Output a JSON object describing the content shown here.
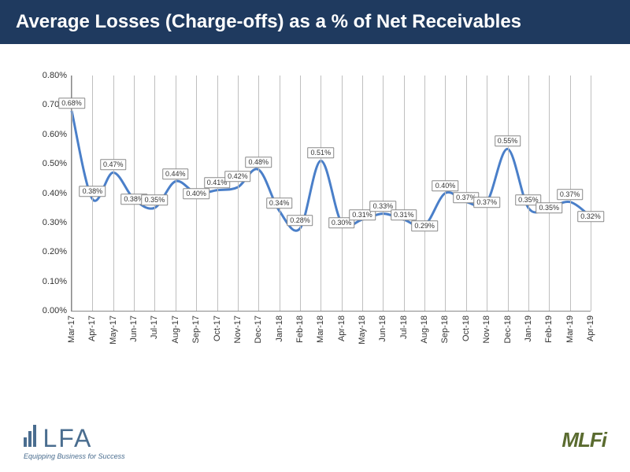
{
  "title": "Average Losses (Charge-offs) as a % of Net Receivables",
  "chart": {
    "type": "line",
    "line_color": "#4a7fc9",
    "line_width": 3,
    "background_color": "#ffffff",
    "grid_color": "#bfbfbf",
    "ylim": [
      0.0,
      0.8
    ],
    "ytick_step": 0.1,
    "y_format": "percent_2dp",
    "y_labels": [
      "0.00%",
      "0.10%",
      "0.20%",
      "0.30%",
      "0.40%",
      "0.50%",
      "0.60%",
      "0.70%",
      "0.80%"
    ],
    "categories": [
      "Mar-17",
      "Apr-17",
      "May-17",
      "Jun-17",
      "Jul-17",
      "Aug-17",
      "Sep-17",
      "Oct-17",
      "Nov-17",
      "Dec-17",
      "Jan-18",
      "Feb-18",
      "Mar-18",
      "Apr-18",
      "May-18",
      "Jun-18",
      "Jul-18",
      "Aug-18",
      "Sep-18",
      "Oct-18",
      "Nov-18",
      "Dec-18",
      "Jan-19",
      "Feb-19",
      "Mar-19",
      "Apr-19"
    ],
    "values": [
      0.68,
      0.38,
      0.47,
      0.38,
      0.35,
      0.44,
      0.4,
      0.41,
      0.42,
      0.48,
      0.34,
      0.28,
      0.51,
      0.3,
      0.31,
      0.33,
      0.31,
      0.29,
      0.4,
      0.37,
      0.37,
      0.55,
      0.35,
      0.35,
      0.37,
      0.32
    ],
    "value_labels": [
      "0.68%",
      "0.38%",
      "0.47%",
      "0.38%",
      "0.35%",
      "0.44%",
      "0.40%",
      "0.41%",
      "0.42%",
      "0.48%",
      "0.34%",
      "0.28%",
      "0.51%",
      "0.30%",
      "0.31%",
      "0.33%",
      "0.31%",
      "0.29%",
      "0.40%",
      "0.37%",
      "0.37%",
      "0.55%",
      "0.35%",
      "0.35%",
      "0.37%",
      "0.32%"
    ],
    "label_fontsize": 9,
    "axis_fontsize": 11,
    "title_fontsize": 24,
    "label_offsets_y": [
      0,
      0,
      0,
      10,
      0,
      0,
      10,
      0,
      -4,
      0,
      0,
      0,
      0,
      10,
      4,
      0,
      4,
      10,
      0,
      4,
      10,
      0,
      0,
      10,
      0,
      10
    ]
  },
  "logos": {
    "elfa_text": "LFA",
    "elfa_tagline": "Equipping Business for Success",
    "mlfi_text": "MLFi"
  },
  "colors": {
    "header_bg": "#1f3a5f",
    "header_text": "#ffffff",
    "elfa_color": "#4a6d8f",
    "mlfi_color": "#5a6b2f"
  }
}
